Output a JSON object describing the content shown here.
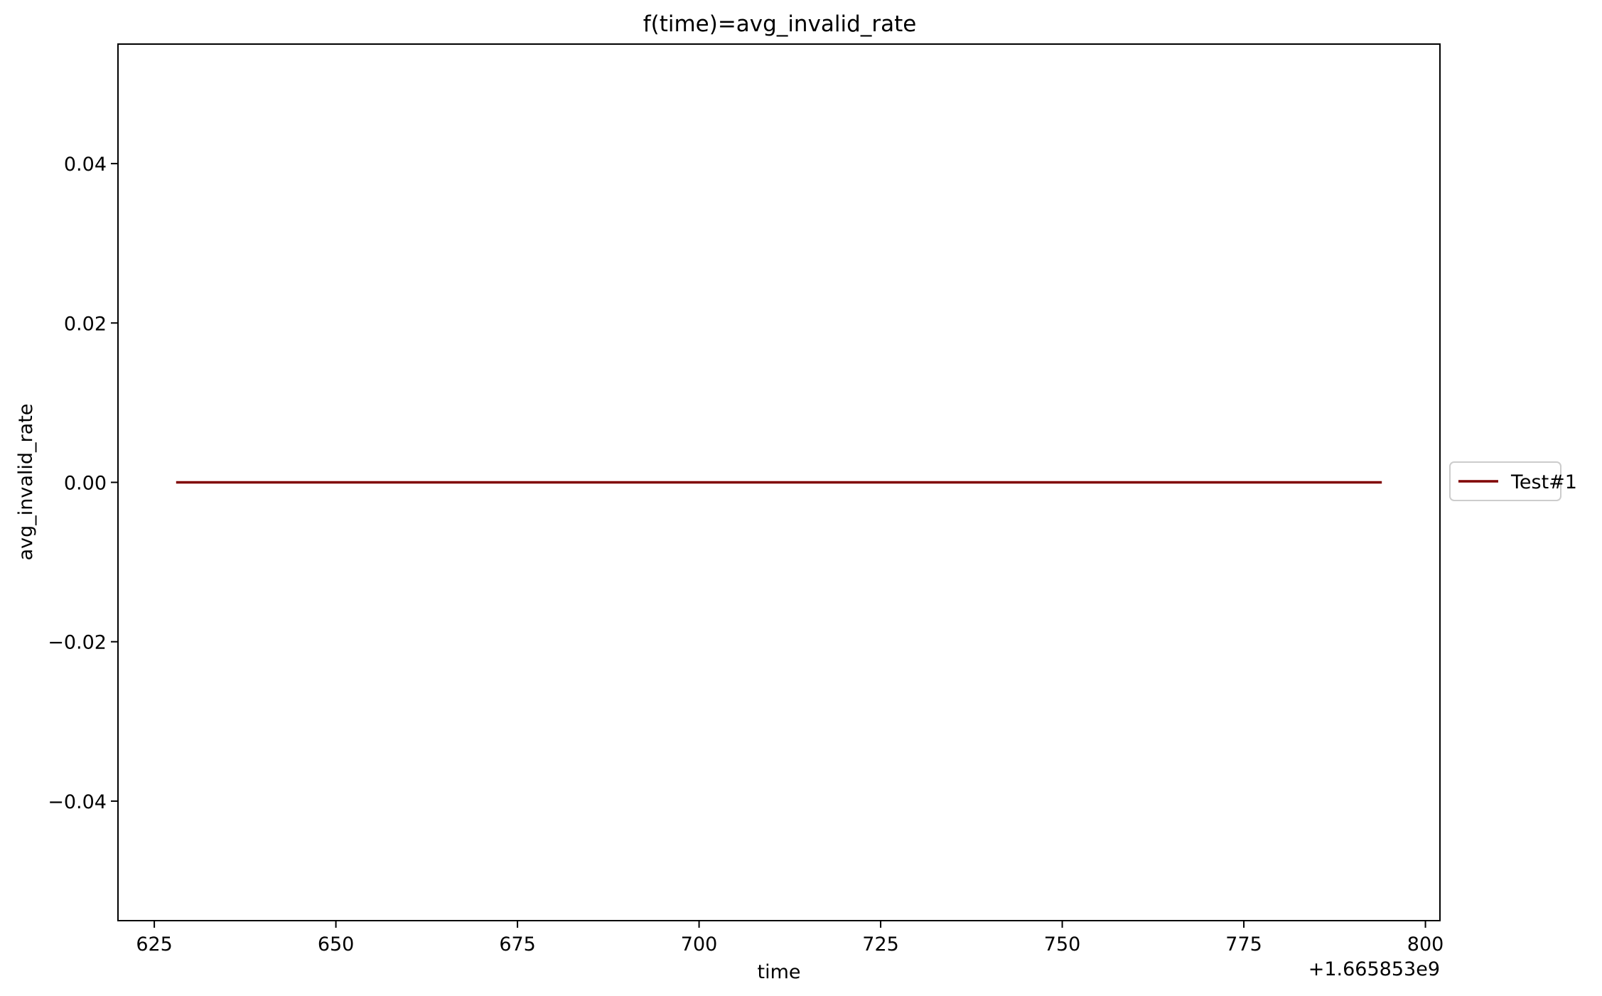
{
  "chart_data": {
    "type": "line",
    "title": "f(time)=avg_invalid_rate",
    "xlabel": "time",
    "ylabel": "avg_invalid_rate",
    "x_offset_label": "+1.665853e9",
    "xlim": [
      620,
      802
    ],
    "ylim": [
      -0.055,
      0.055
    ],
    "x_ticks": [
      625,
      650,
      675,
      700,
      725,
      750,
      775,
      800
    ],
    "x_tick_labels": [
      "625",
      "650",
      "675",
      "700",
      "725",
      "750",
      "775",
      "800"
    ],
    "y_ticks": [
      -0.04,
      -0.02,
      0.0,
      0.02,
      0.04
    ],
    "y_tick_labels": [
      "−0.04",
      "−0.02",
      "0.00",
      "0.02",
      "0.04"
    ],
    "grid": false,
    "legend_position": "right-outside",
    "series": [
      {
        "name": "Test#1",
        "color": "#800000",
        "x": [
          628,
          794
        ],
        "y": [
          0.0,
          0.0
        ]
      }
    ]
  }
}
